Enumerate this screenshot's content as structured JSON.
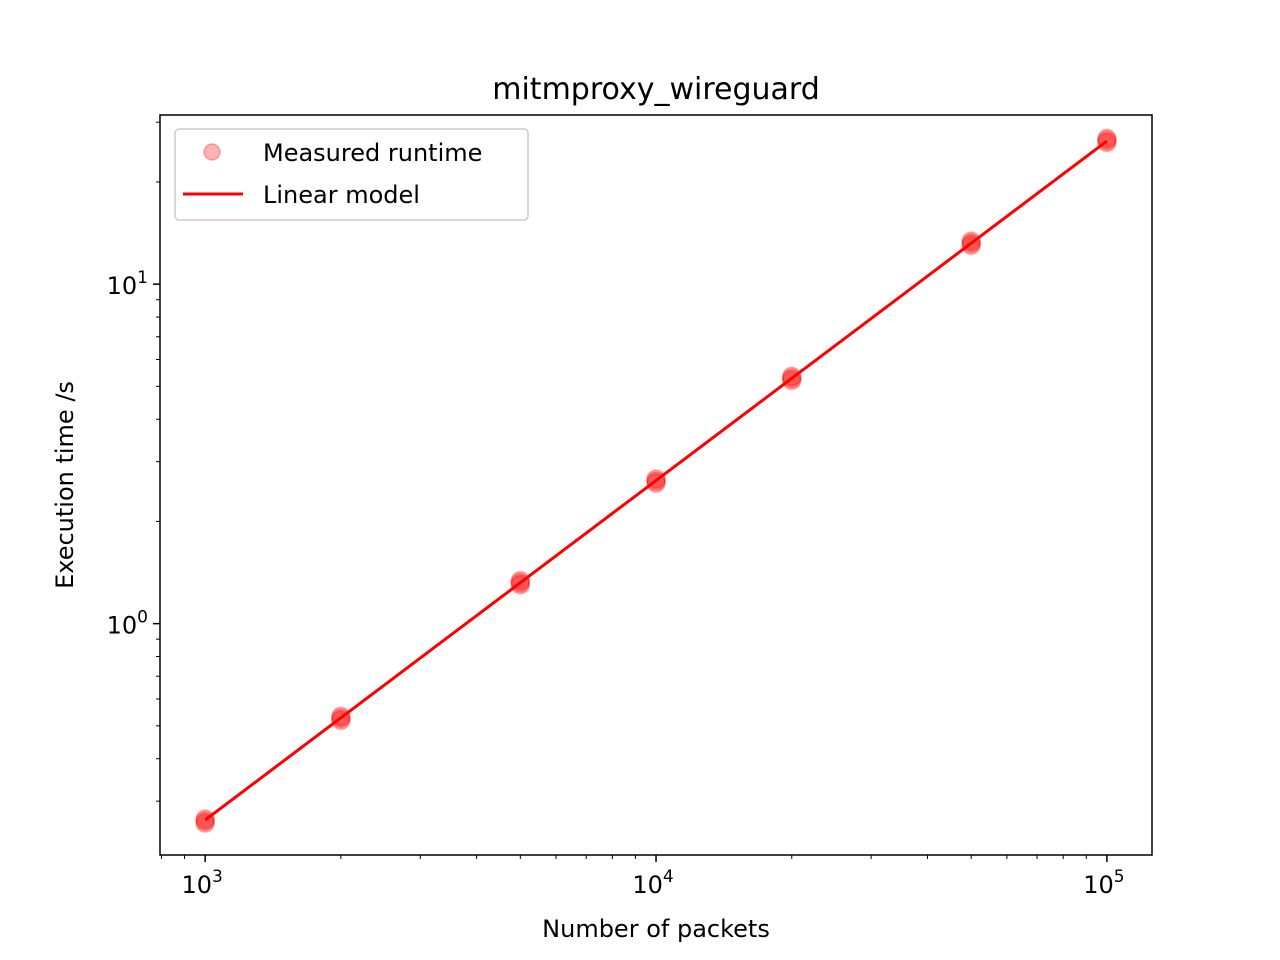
{
  "chart_data": {
    "type": "scatter",
    "title": "mitmproxy_wireguard",
    "xlabel": "Number of packets",
    "ylabel": "Execution time /s",
    "xscale": "log",
    "yscale": "log",
    "xlim": [
      794,
      125900
    ],
    "ylim": [
      0.2082,
      31.5
    ],
    "grid": false,
    "legend_position": "top-left",
    "x_tick_labels": [
      {
        "value": 1000,
        "base": "10",
        "exponent": "3"
      },
      {
        "value": 10000,
        "base": "10",
        "exponent": "4"
      },
      {
        "value": 100000,
        "base": "10",
        "exponent": "5"
      }
    ],
    "y_tick_labels": [
      {
        "value": 1,
        "base": "10",
        "exponent": "0"
      },
      {
        "value": 10,
        "base": "10",
        "exponent": "1"
      }
    ],
    "series": [
      {
        "name": "Measured runtime",
        "kind": "scatter",
        "color": "#ff0000",
        "alpha": 0.3,
        "points": [
          {
            "x": 1000,
            "y": 0.262
          },
          {
            "x": 2000,
            "y": 0.526
          },
          {
            "x": 5000,
            "y": 1.32
          },
          {
            "x": 10000,
            "y": 2.63
          },
          {
            "x": 20000,
            "y": 5.28
          },
          {
            "x": 50000,
            "y": 13.2
          },
          {
            "x": 100000,
            "y": 26.5
          }
        ]
      },
      {
        "name": "Linear model",
        "kind": "line",
        "color": "#ff0000",
        "points": [
          {
            "x": 1000,
            "y": 0.264
          },
          {
            "x": 100000,
            "y": 26.4
          }
        ]
      }
    ]
  }
}
